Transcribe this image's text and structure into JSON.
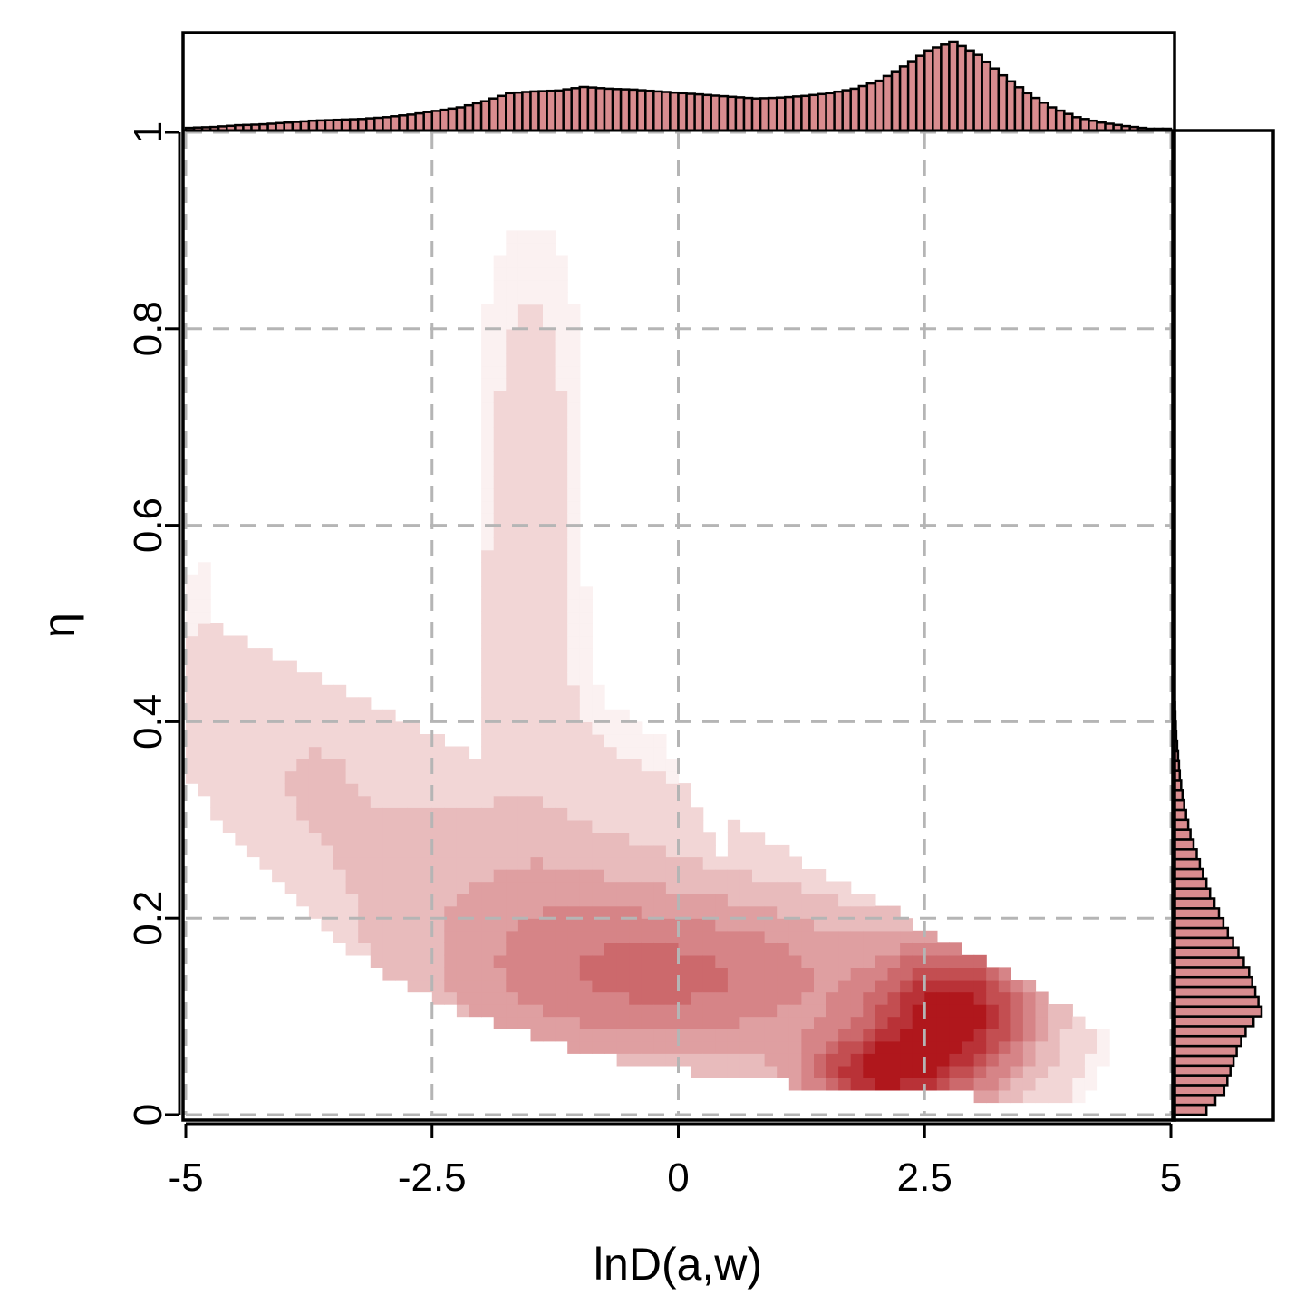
{
  "chart_data": {
    "type": "heatmap",
    "xlabel": "lnD(a,w)",
    "ylabel": "η",
    "xlim": [
      -5,
      5
    ],
    "ylim": [
      0,
      1
    ],
    "x_ticks": [
      "-5",
      "-2.5",
      "0",
      "2.5",
      "5"
    ],
    "x_tick_values": [
      -5,
      -2.5,
      0,
      2.5,
      5
    ],
    "y_ticks": [
      "0",
      "0.2",
      "0.4",
      "0.6",
      "0.8",
      "1"
    ],
    "y_tick_values": [
      0,
      0.2,
      0.4,
      0.6,
      0.8,
      1
    ],
    "grid": true,
    "colors": {
      "heat_low": "#fbf1f1",
      "heat_high": "#b0171c",
      "histogram_fill": "#d98c8f",
      "grid": "#b5b5b5"
    },
    "density_components": [
      {
        "center": [
          2.8,
          0.1
        ],
        "spread": [
          0.55,
          0.05
        ],
        "weight": 1.0
      },
      {
        "center": [
          2.0,
          0.04
        ],
        "spread": [
          0.5,
          0.03
        ],
        "weight": 0.8
      },
      {
        "center": [
          0.3,
          0.14
        ],
        "spread": [
          1.3,
          0.06
        ],
        "weight": 0.45
      },
      {
        "center": [
          -1.5,
          0.18
        ],
        "spread": [
          1.1,
          0.1
        ],
        "weight": 0.25
      },
      {
        "center": [
          -3.8,
          0.35
        ],
        "spread": [
          1.0,
          0.12
        ],
        "weight": 0.12
      },
      {
        "center": [
          -1.5,
          0.6
        ],
        "spread": [
          0.35,
          0.2
        ],
        "weight": 0.06
      }
    ],
    "marginal_x": {
      "x": [
        -5,
        -4.75,
        -4.5,
        -4.25,
        -4,
        -3.75,
        -3.5,
        -3.25,
        -3,
        -2.75,
        -2.5,
        -2.25,
        -2,
        -1.75,
        -1.5,
        -1.25,
        -1,
        -0.75,
        -0.5,
        -0.25,
        0,
        0.25,
        0.5,
        0.75,
        1,
        1.25,
        1.5,
        1.75,
        2,
        2.25,
        2.5,
        2.75,
        3,
        3.25,
        3.5,
        3.75,
        4,
        4.25,
        4.5,
        4.75
      ],
      "density": [
        0.03,
        0.04,
        0.06,
        0.07,
        0.09,
        0.11,
        0.12,
        0.13,
        0.15,
        0.18,
        0.22,
        0.26,
        0.33,
        0.42,
        0.44,
        0.45,
        0.49,
        0.47,
        0.46,
        0.44,
        0.42,
        0.4,
        0.38,
        0.36,
        0.37,
        0.39,
        0.42,
        0.47,
        0.56,
        0.72,
        0.9,
        1.0,
        0.85,
        0.62,
        0.42,
        0.26,
        0.15,
        0.09,
        0.05,
        0.02
      ]
    },
    "marginal_y": {
      "y": [
        0.01,
        0.03,
        0.05,
        0.07,
        0.09,
        0.11,
        0.13,
        0.15,
        0.17,
        0.19,
        0.21,
        0.23,
        0.25,
        0.27,
        0.29,
        0.31,
        0.33,
        0.35,
        0.37,
        0.39,
        0.41,
        0.43,
        0.45,
        0.47,
        0.49
      ],
      "density": [
        0.38,
        0.58,
        0.65,
        0.72,
        0.82,
        1.0,
        0.93,
        0.86,
        0.74,
        0.62,
        0.52,
        0.42,
        0.34,
        0.27,
        0.2,
        0.15,
        0.11,
        0.08,
        0.06,
        0.04,
        0.03,
        0.02,
        0.015,
        0.01,
        0.005
      ]
    }
  }
}
